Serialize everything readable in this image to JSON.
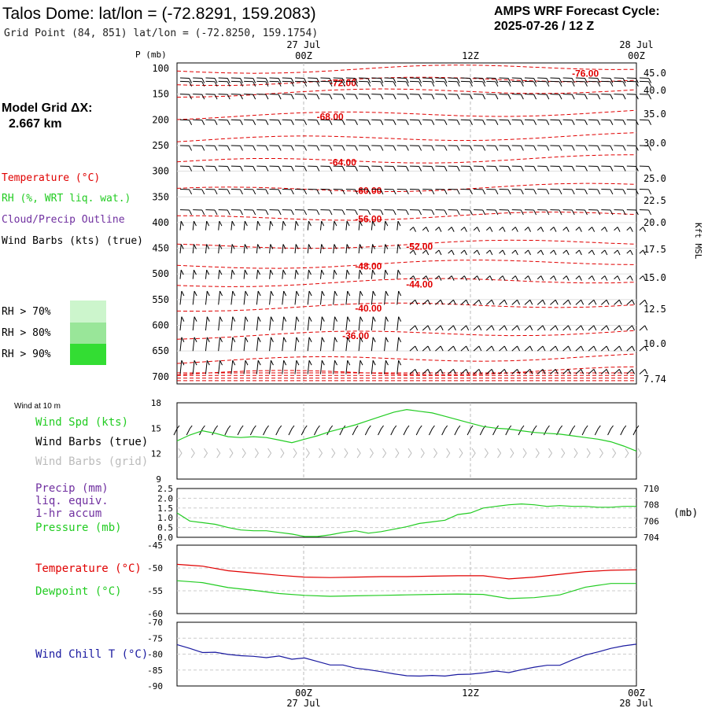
{
  "header": {
    "title": "Talos Dome:  lat/lon = (-72.8291, 159.2083)",
    "grid_point": "Grid Point (84, 851) lat/lon = (-72.8250, 159.1754)",
    "cycle_line1": "AMPS WRF Forecast Cycle:",
    "cycle_line2": "2025-07-26 / 12  Z"
  },
  "grid_info": {
    "line1": "Model Grid ΔX:",
    "line2": "2.667 km"
  },
  "legend": {
    "temperature": "Temperature (°C)",
    "rh": "RH (%, WRT liq. wat.)",
    "cloud": "Cloud/Precip Outline",
    "barbs": "Wind Barbs (kts) (true)",
    "rh70": "RH > 70%",
    "rh80": "RH > 80%",
    "rh90": "RH > 90%",
    "wind10m_title": "Wind at 10 m",
    "wind_spd": "Wind Spd (kts)",
    "barbs_true": "Wind Barbs (true)",
    "barbs_grid": "Wind Barbs (grid)",
    "precip1": "Precip (mm)",
    "precip2": "liq. equiv.",
    "precip3": "1-hr accum",
    "pressure": "Pressure (mb)",
    "temp2": "Temperature (°C)",
    "dewpoint": "Dewpoint (°C)",
    "windchill": "Wind Chill T (°C)"
  },
  "colors": {
    "temperature": "#e00000",
    "rh": "#22cc22",
    "cloud": "#7030a0",
    "windchill": "#1a1aa0",
    "rh70": "#ccf5cc",
    "rh80": "#99e699",
    "rh90": "#33dd33",
    "grid_barbs": "#bbbbbb"
  },
  "time_axis": {
    "top_dates": [
      "27 Jul",
      "28 Jul"
    ],
    "top_hours": [
      "00Z",
      "12Z",
      "00Z"
    ],
    "bottom_hours": [
      "00Z",
      "12Z",
      "00Z"
    ],
    "bottom_dates": [
      "27 Jul",
      "28 Jul"
    ]
  },
  "chart_data": [
    {
      "type": "line",
      "panel": "vertical-profile",
      "ylabel": "P (mb)",
      "y_ticks": [
        100,
        150,
        200,
        250,
        300,
        350,
        400,
        450,
        500,
        550,
        600,
        650,
        700
      ],
      "right_axis_label": "Kft MSL",
      "right_ticks": [
        "45.0",
        "40.0",
        "35.0",
        "30.0",
        "25.0",
        "22.5",
        "20.0",
        "17.5",
        "15.0",
        "12.5",
        "10.0",
        "7.74"
      ],
      "x_hours": [
        0,
        36
      ],
      "temperature_labels": [
        {
          "label": "-76.00",
          "hour": 32,
          "p": 110
        },
        {
          "label": "-72.00",
          "hour": 13,
          "p": 128
        },
        {
          "label": "-68.00",
          "hour": 12,
          "p": 194
        },
        {
          "label": "-64.00",
          "hour": 13,
          "p": 283
        },
        {
          "label": "-60.00",
          "hour": 15,
          "p": 338
        },
        {
          "label": "-56.00",
          "hour": 15,
          "p": 393
        },
        {
          "label": "-52.00",
          "hour": 19,
          "p": 447
        },
        {
          "label": "-48.00",
          "hour": 15,
          "p": 485
        },
        {
          "label": "-44.00",
          "hour": 19,
          "p": 520
        },
        {
          "label": "-40.00",
          "hour": 15,
          "p": 567
        },
        {
          "label": "-36.00",
          "hour": 14,
          "p": 621
        }
      ]
    },
    {
      "type": "line",
      "panel": "wind-10m",
      "ylim": [
        9,
        18
      ],
      "y_ticks": [
        9,
        12,
        15,
        18
      ],
      "series": [
        {
          "name": "Wind Spd (kts)",
          "x": [
            0,
            1,
            2,
            3,
            4,
            5,
            6,
            7,
            8,
            9,
            10,
            11,
            12,
            13,
            14,
            15,
            16,
            17,
            18,
            19,
            20,
            21,
            22,
            23,
            24,
            25,
            26,
            27,
            28,
            29,
            30,
            31,
            32,
            33,
            34,
            35,
            36
          ],
          "values": [
            13.5,
            14.2,
            14.7,
            14.4,
            14.0,
            13.9,
            14.0,
            13.9,
            13.6,
            13.3,
            13.7,
            14.1,
            14.6,
            15.0,
            15.4,
            15.9,
            16.4,
            16.9,
            17.2,
            17.0,
            16.8,
            16.4,
            16.0,
            15.6,
            15.2,
            15.0,
            14.9,
            14.7,
            14.5,
            14.4,
            14.3,
            14.1,
            13.9,
            13.7,
            13.4,
            12.9,
            12.3
          ]
        }
      ]
    },
    {
      "type": "line",
      "panel": "precip-pressure",
      "ylim": [
        0,
        2.5
      ],
      "y_ticks": [
        0.0,
        0.5,
        1.0,
        1.5,
        2.0,
        2.5
      ],
      "right_ylim": [
        704,
        710
      ],
      "right_ticks": [
        704,
        706,
        708,
        710
      ],
      "right_unit": "(mb)",
      "series": [
        {
          "name": "Pressure (mb)",
          "x": [
            0,
            1,
            2,
            3,
            4,
            5,
            6,
            7,
            8,
            9,
            10,
            11,
            12,
            13,
            14,
            15,
            16,
            17,
            18,
            19,
            20,
            21,
            22,
            23,
            24,
            25,
            26,
            27,
            28,
            29,
            30,
            31,
            32,
            33,
            34,
            35,
            36
          ],
          "values": [
            707.0,
            706.0,
            705.8,
            705.6,
            705.2,
            704.9,
            704.8,
            704.8,
            704.6,
            704.4,
            704.1,
            704.1,
            704.3,
            704.6,
            704.8,
            704.5,
            704.7,
            705.0,
            705.3,
            705.7,
            705.9,
            706.1,
            706.8,
            707.0,
            707.6,
            707.8,
            708.0,
            708.1,
            708.0,
            707.8,
            707.9,
            707.8,
            707.8,
            707.7,
            707.7,
            707.8,
            707.8
          ]
        }
      ]
    },
    {
      "type": "line",
      "panel": "temperature-dewpoint",
      "ylim": [
        -60,
        -45
      ],
      "y_ticks": [
        -60,
        -55,
        -50,
        -45
      ],
      "series": [
        {
          "name": "Temperature (°C)",
          "x": [
            0,
            2,
            4,
            6,
            8,
            10,
            12,
            14,
            16,
            18,
            20,
            22,
            24,
            26,
            28,
            30,
            32,
            34,
            36
          ],
          "values": [
            -49.2,
            -49.6,
            -50.6,
            -51.1,
            -51.6,
            -52.0,
            -52.1,
            -52.0,
            -51.9,
            -51.9,
            -51.8,
            -51.7,
            -51.7,
            -52.4,
            -52.0,
            -51.4,
            -50.8,
            -50.5,
            -50.4
          ]
        },
        {
          "name": "Dewpoint (°C)",
          "x": [
            0,
            2,
            4,
            6,
            8,
            10,
            12,
            14,
            16,
            18,
            20,
            22,
            24,
            26,
            28,
            30,
            32,
            34,
            36
          ],
          "values": [
            -52.8,
            -53.2,
            -54.3,
            -54.9,
            -55.6,
            -56.0,
            -56.2,
            -56.1,
            -56.0,
            -55.9,
            -55.8,
            -55.7,
            -55.8,
            -56.7,
            -56.5,
            -55.9,
            -54.2,
            -53.4,
            -53.4
          ]
        }
      ]
    },
    {
      "type": "line",
      "panel": "wind-chill",
      "ylim": [
        -90,
        -70
      ],
      "y_ticks": [
        -90,
        -85,
        -80,
        -75,
        -70
      ],
      "series": [
        {
          "name": "Wind Chill T (°C)",
          "x": [
            0,
            1,
            2,
            3,
            4,
            5,
            6,
            7,
            8,
            9,
            10,
            11,
            12,
            13,
            14,
            15,
            16,
            17,
            18,
            19,
            20,
            21,
            22,
            23,
            24,
            25,
            26,
            27,
            28,
            29,
            30,
            31,
            32,
            33,
            34,
            35,
            36
          ],
          "values": [
            -77.0,
            -78.2,
            -79.5,
            -79.4,
            -80.1,
            -80.5,
            -80.7,
            -81.1,
            -80.6,
            -81.6,
            -81.2,
            -82.3,
            -83.4,
            -83.4,
            -84.4,
            -84.9,
            -85.5,
            -86.2,
            -86.8,
            -86.9,
            -86.7,
            -86.9,
            -86.4,
            -86.3,
            -85.9,
            -85.3,
            -85.8,
            -84.9,
            -84.1,
            -83.5,
            -83.5,
            -81.8,
            -80.3,
            -79.3,
            -78.2,
            -77.4,
            -76.9
          ]
        }
      ]
    }
  ]
}
